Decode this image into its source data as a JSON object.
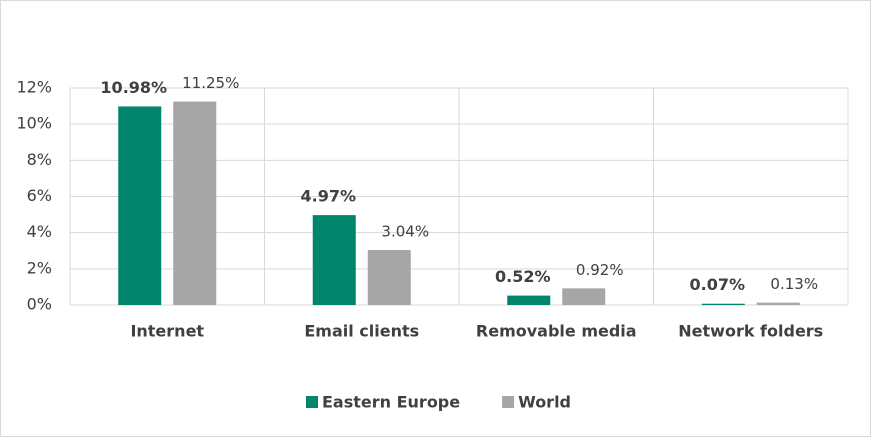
{
  "chart_data": {
    "type": "bar",
    "categories": [
      "Internet",
      "Email clients",
      "Removable media",
      "Network folders"
    ],
    "series": [
      {
        "name": "Eastern Europe",
        "color": "#00846a",
        "values": [
          10.98,
          4.97,
          0.52,
          0.07
        ],
        "value_labels": [
          "10.98%",
          "4.97%",
          "0.52%",
          "0.07%"
        ]
      },
      {
        "name": "World",
        "color": "#a6a6a6",
        "values": [
          11.25,
          3.04,
          0.92,
          0.13
        ],
        "value_labels": [
          "11.25%",
          "3.04%",
          "0.92%",
          "0.13%"
        ]
      }
    ],
    "ylim": [
      0,
      12
    ],
    "yticks": [
      {
        "value": 0,
        "label": "0%"
      },
      {
        "value": 2,
        "label": "2%"
      },
      {
        "value": 4,
        "label": "4%"
      },
      {
        "value": 6,
        "label": "6%"
      },
      {
        "value": 8,
        "label": "8%"
      },
      {
        "value": 10,
        "label": "10%"
      },
      {
        "value": 12,
        "label": "12%"
      }
    ],
    "grid": true,
    "legend": "bottom"
  }
}
